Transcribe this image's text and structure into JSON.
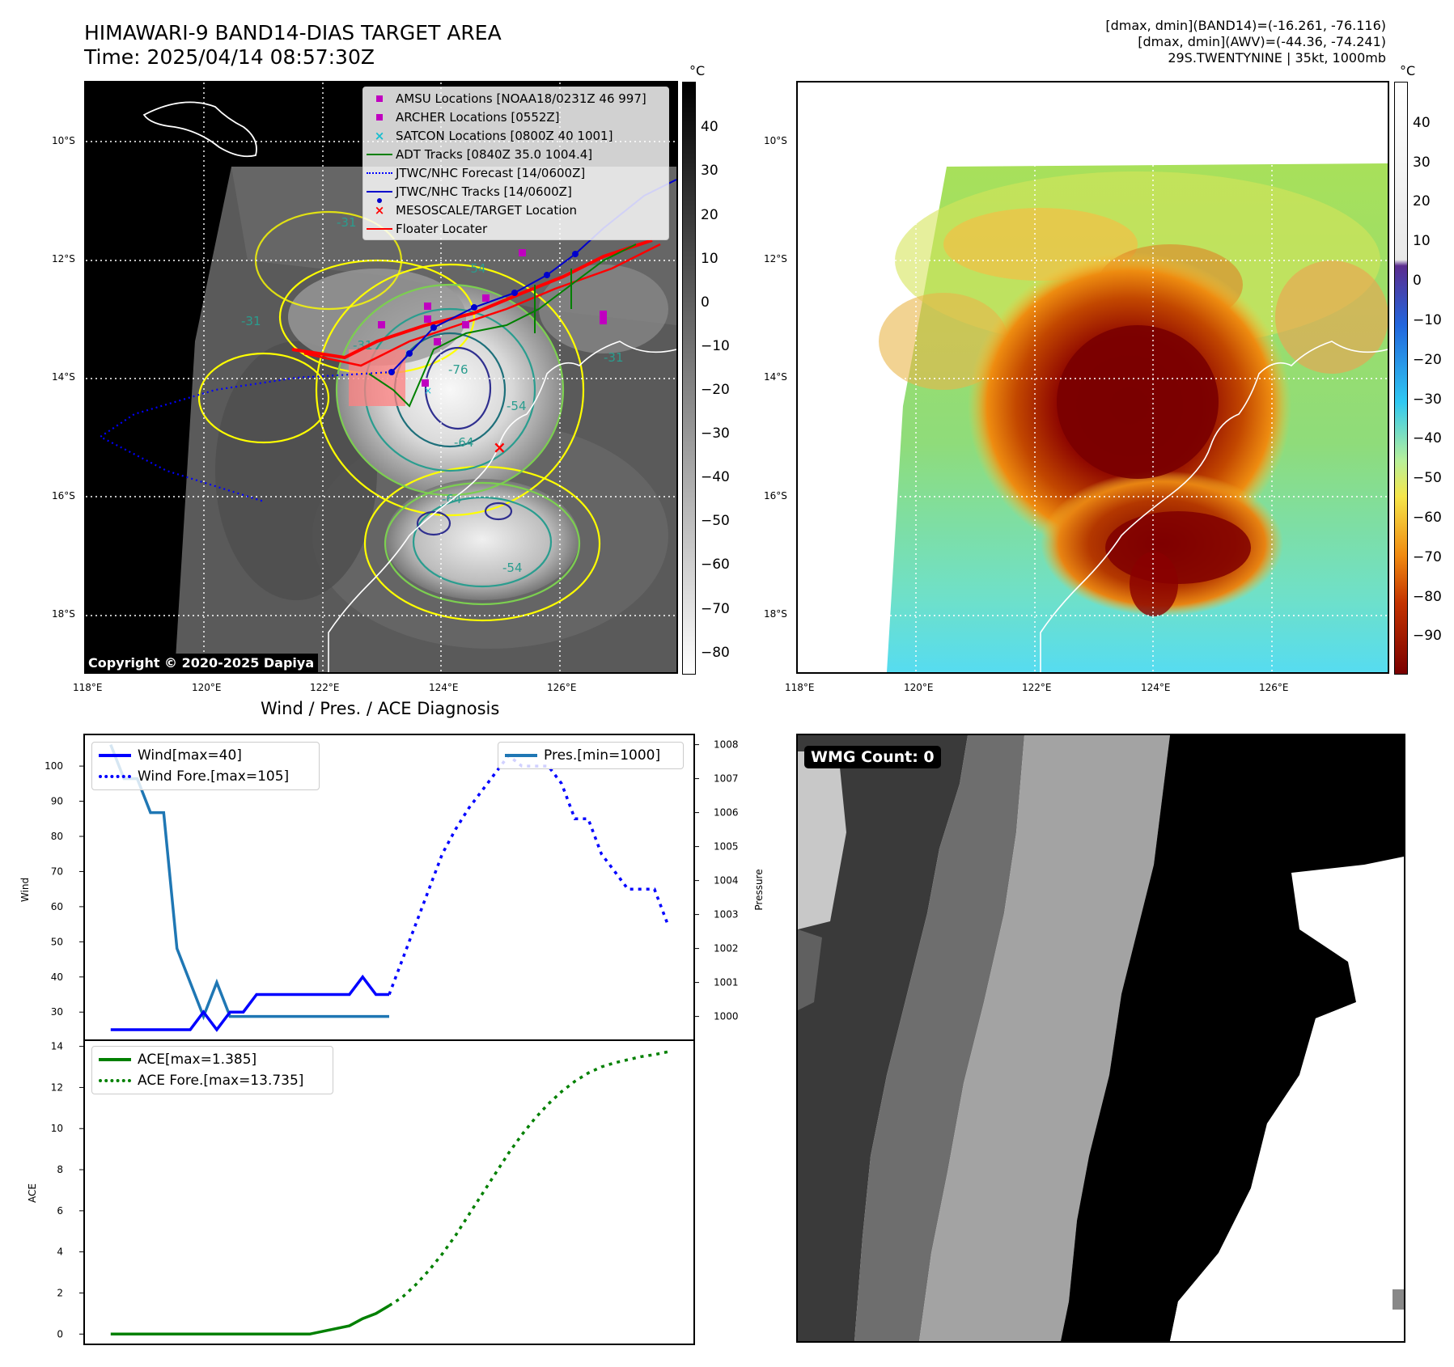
{
  "header": {
    "title_line1": "HIMAWARI-9 BAND14-DIAS TARGET AREA",
    "title_line2": "Time: 2025/04/14 08:57:30Z",
    "info_line1": "[dmax, dmin](BAND14)=(-16.261, -76.116)",
    "info_line2": "[dmax, dmin](AWV)=(-44.36, -74.241)",
    "info_line3": "29S.TWENTYNINE | 35kt, 1000mb"
  },
  "map": {
    "lat_labels": [
      "10°S",
      "12°S",
      "14°S",
      "16°S",
      "18°S"
    ],
    "lon_labels": [
      "118°E",
      "120°E",
      "122°E",
      "124°E",
      "126°E"
    ],
    "colorbar_unit": "°C",
    "copyright": "Copyright © 2020-2025 Dapiya",
    "legend": [
      {
        "label": "AMSU Locations [NOAA18/0231Z 46 997]",
        "symbol": "square",
        "color": "#c000c0"
      },
      {
        "label": "ARCHER Locations [0552Z]",
        "symbol": "square",
        "color": "#c000c0"
      },
      {
        "label": "SATCON Locations [0800Z 40 1001]",
        "symbol": "x",
        "color": "#17becf"
      },
      {
        "label": "ADT Tracks [0840Z 35.0 1004.4]",
        "symbol": "line",
        "color": "#008000"
      },
      {
        "label": "JTWC/NHC Forecast [14/0600Z]",
        "symbol": "dotted",
        "color": "#0000ff"
      },
      {
        "label": "JTWC/NHC Tracks [14/0600Z]",
        "symbol": "line-dot",
        "color": "#0000cc"
      },
      {
        "label": "MESOSCALE/TARGET Location",
        "symbol": "x",
        "color": "#ff0000"
      },
      {
        "label": "Floater Locater",
        "symbol": "line",
        "color": "#ff0000"
      }
    ],
    "contour_labels": [
      "-31",
      "-31",
      "-31",
      "-54",
      "-64",
      "-76",
      "-64",
      "-54",
      "-54",
      "-31"
    ]
  },
  "colorbar_gray": {
    "ticks": [
      "40",
      "30",
      "20",
      "10",
      "0",
      "−10",
      "−20",
      "−30",
      "−40",
      "−50",
      "−60",
      "−70",
      "−80"
    ]
  },
  "colorbar_color": {
    "ticks": [
      "40",
      "30",
      "20",
      "10",
      "0",
      "−10",
      "−20",
      "−30",
      "−40",
      "−50",
      "−60",
      "−70",
      "−80",
      "−90"
    ]
  },
  "wmg": {
    "label": "WMG Count: 0"
  },
  "chart_data": [
    {
      "type": "line",
      "title": "Wind / Pres. / ACE Diagnosis",
      "ylabel": "Wind",
      "ylabel2": "Pressure",
      "ylim": [
        22,
        109
      ],
      "ylim2": [
        999.3,
        1008.3
      ],
      "yticks": [
        30,
        40,
        50,
        60,
        70,
        80,
        90,
        100
      ],
      "yticks2": [
        1000,
        1001,
        1002,
        1003,
        1004,
        1005,
        1006,
        1007,
        1008
      ],
      "series": [
        {
          "name": "Wind[max=40]",
          "color": "#0000ff",
          "style": "solid",
          "axis": "left",
          "x": [
            0,
            1,
            2,
            3,
            4,
            5,
            6,
            7,
            8,
            9,
            10,
            11,
            12,
            13,
            14,
            15,
            16,
            17,
            18,
            19,
            20,
            21
          ],
          "values": [
            25,
            25,
            25,
            25,
            25,
            25,
            25,
            30,
            25,
            30,
            30,
            35,
            35,
            35,
            35,
            35,
            35,
            35,
            35,
            40,
            35,
            35
          ]
        },
        {
          "name": "Wind Fore.[max=105]",
          "color": "#0000ff",
          "style": "dotted",
          "axis": "left",
          "x": [
            21,
            22,
            23,
            24,
            25,
            26,
            27,
            28,
            29,
            30,
            31,
            32,
            33,
            34,
            35,
            36,
            37,
            38,
            39,
            40,
            41,
            42
          ],
          "values": [
            35,
            45,
            55,
            65,
            75,
            82,
            88,
            93,
            98,
            103,
            100,
            100,
            100,
            95,
            85,
            85,
            75,
            70,
            65,
            65,
            65,
            55
          ]
        },
        {
          "name": "Pres.[min=1000]",
          "color": "#1f77b4",
          "style": "solid",
          "axis": "right",
          "x": [
            0,
            1,
            2,
            3,
            4,
            5,
            6,
            7,
            8,
            9,
            10,
            11,
            12,
            13,
            14,
            15,
            16,
            17,
            18,
            19,
            20,
            21
          ],
          "values": [
            1008,
            1007,
            1007,
            1006,
            1006,
            1002,
            1001,
            1000,
            1001,
            1000,
            1000,
            1000,
            1000,
            1000,
            1000,
            1000,
            1000,
            1000,
            1000,
            1000,
            1000,
            1000
          ]
        }
      ]
    },
    {
      "type": "line",
      "ylabel": "ACE",
      "ylim": [
        -0.5,
        14.3
      ],
      "yticks": [
        0,
        2,
        4,
        6,
        8,
        10,
        12,
        14
      ],
      "series": [
        {
          "name": "ACE[max=1.385]",
          "color": "#008000",
          "style": "solid",
          "x": [
            0,
            5,
            10,
            15,
            18,
            19,
            20,
            21
          ],
          "values": [
            0,
            0,
            0,
            0,
            0.4,
            0.75,
            1.0,
            1.385
          ]
        },
        {
          "name": "ACE Fore.[max=13.735]",
          "color": "#008000",
          "style": "dotted",
          "x": [
            21,
            22,
            23,
            24,
            25,
            26,
            27,
            28,
            29,
            30,
            31,
            32,
            33,
            34,
            35,
            36,
            37,
            38,
            39,
            40,
            41,
            42
          ],
          "values": [
            1.385,
            1.8,
            2.4,
            3.1,
            3.9,
            4.8,
            5.8,
            6.8,
            7.8,
            8.8,
            9.7,
            10.5,
            11.2,
            11.8,
            12.3,
            12.7,
            13.0,
            13.2,
            13.35,
            13.5,
            13.6,
            13.735
          ]
        }
      ]
    }
  ]
}
